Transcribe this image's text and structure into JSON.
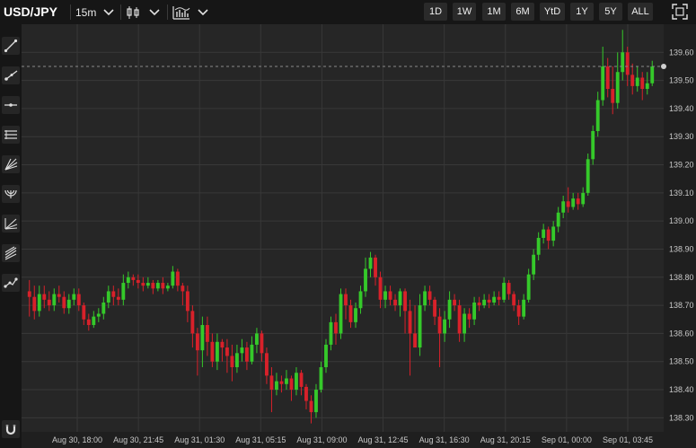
{
  "header": {
    "symbol": "USD/JPY",
    "interval": "15m",
    "chart_type_icon": "candlestick-icon",
    "indicators_icon": "indicators-icon",
    "ranges": [
      "1D",
      "1W",
      "1M",
      "6M",
      "YtD",
      "1Y",
      "5Y",
      "ALL"
    ],
    "fullscreen_icon": "fullscreen-icon"
  },
  "tools": [
    "trend-line-icon",
    "ray-icon",
    "horizontal-line-icon",
    "parallel-channel-icon",
    "fan-icon",
    "arc-icon",
    "fib-retracement-icon",
    "pitchfork-icon",
    "path-icon",
    "magnet-icon"
  ],
  "colors": {
    "up": "#35c92a",
    "down": "#d8212a",
    "background": "#262626",
    "grid": "#383838",
    "crosshair": "#8a8a8a"
  },
  "chart_data": {
    "type": "candlestick",
    "ylim": [
      138.25,
      139.7
    ],
    "yticks": [
      "139.60",
      "139.50",
      "139.40",
      "139.30",
      "139.20",
      "139.10",
      "139.00",
      "138.90",
      "138.80",
      "138.70",
      "138.60",
      "138.50",
      "138.40",
      "138.30"
    ],
    "xticks": [
      "Aug 30, 18:00",
      "Aug 30, 21:45",
      "Aug 31, 01:30",
      "Aug 31, 05:15",
      "Aug 31, 09:00",
      "Aug 31, 12:45",
      "Aug 31, 16:30",
      "Aug 31, 20:15",
      "Sep 01, 00:00",
      "Sep 01, 03:45"
    ],
    "current_price": "139.55",
    "candles": [
      [
        138.75,
        138.73,
        138.79,
        138.66
      ],
      [
        138.73,
        138.68,
        138.77,
        138.65
      ],
      [
        138.68,
        138.74,
        138.77,
        138.66
      ],
      [
        138.74,
        138.72,
        138.77,
        138.69
      ],
      [
        138.72,
        138.7,
        138.75,
        138.68
      ],
      [
        138.7,
        138.74,
        138.76,
        138.68
      ],
      [
        138.74,
        138.73,
        138.77,
        138.71
      ],
      [
        138.73,
        138.69,
        138.75,
        138.67
      ],
      [
        138.69,
        138.72,
        138.74,
        138.67
      ],
      [
        138.72,
        138.74,
        138.76,
        138.7
      ],
      [
        138.74,
        138.7,
        138.76,
        138.68
      ],
      [
        138.7,
        138.65,
        138.71,
        138.63
      ],
      [
        138.65,
        138.63,
        138.67,
        138.61
      ],
      [
        138.63,
        138.66,
        138.68,
        138.62
      ],
      [
        138.66,
        138.67,
        138.69,
        138.64
      ],
      [
        138.67,
        138.71,
        138.73,
        138.65
      ],
      [
        138.71,
        138.75,
        138.77,
        138.69
      ],
      [
        138.75,
        138.73,
        138.77,
        138.7
      ],
      [
        138.73,
        138.72,
        138.76,
        138.7
      ],
      [
        138.72,
        138.78,
        138.81,
        138.7
      ],
      [
        138.78,
        138.8,
        138.82,
        138.76
      ],
      [
        138.8,
        138.79,
        138.81,
        138.77
      ],
      [
        138.79,
        138.78,
        138.81,
        138.76
      ],
      [
        138.78,
        138.77,
        138.8,
        138.75
      ],
      [
        138.77,
        138.78,
        138.8,
        138.76
      ],
      [
        138.78,
        138.76,
        138.79,
        138.74
      ],
      [
        138.76,
        138.78,
        138.79,
        138.75
      ],
      [
        138.78,
        138.76,
        138.8,
        138.74
      ],
      [
        138.76,
        138.77,
        138.78,
        138.75
      ],
      [
        138.77,
        138.82,
        138.84,
        138.76
      ],
      [
        138.82,
        138.77,
        138.83,
        138.75
      ],
      [
        138.77,
        138.75,
        138.78,
        138.7
      ],
      [
        138.75,
        138.68,
        138.77,
        138.64
      ],
      [
        138.68,
        138.6,
        138.7,
        138.55
      ],
      [
        138.6,
        138.54,
        138.62,
        138.45
      ],
      [
        138.54,
        138.63,
        138.66,
        138.48
      ],
      [
        138.63,
        138.57,
        138.66,
        138.52
      ],
      [
        138.57,
        138.5,
        138.6,
        138.48
      ],
      [
        138.5,
        138.57,
        138.6,
        138.47
      ],
      [
        138.57,
        138.55,
        138.58,
        138.5
      ],
      [
        138.55,
        138.52,
        138.58,
        138.46
      ],
      [
        138.52,
        138.48,
        138.56,
        138.43
      ],
      [
        138.48,
        138.53,
        138.56,
        138.46
      ],
      [
        138.53,
        138.55,
        138.58,
        138.5
      ],
      [
        138.55,
        138.5,
        138.57,
        138.47
      ],
      [
        138.5,
        138.56,
        138.59,
        138.49
      ],
      [
        138.56,
        138.6,
        138.62,
        138.53
      ],
      [
        138.6,
        138.53,
        138.61,
        138.5
      ],
      [
        138.53,
        138.45,
        138.55,
        138.42
      ],
      [
        138.45,
        138.4,
        138.48,
        138.32
      ],
      [
        138.4,
        138.43,
        138.46,
        138.38
      ],
      [
        138.43,
        138.42,
        138.45,
        138.39
      ],
      [
        138.42,
        138.44,
        138.47,
        138.4
      ],
      [
        138.44,
        138.4,
        138.45,
        138.36
      ],
      [
        138.4,
        138.46,
        138.48,
        138.38
      ],
      [
        138.46,
        138.41,
        138.47,
        138.38
      ],
      [
        138.41,
        138.36,
        138.42,
        138.33
      ],
      [
        138.36,
        138.32,
        138.38,
        138.28
      ],
      [
        138.32,
        138.4,
        138.42,
        138.3
      ],
      [
        138.4,
        138.48,
        138.5,
        138.39
      ],
      [
        138.48,
        138.56,
        138.58,
        138.46
      ],
      [
        138.56,
        138.64,
        138.66,
        138.54
      ],
      [
        138.64,
        138.6,
        138.67,
        138.56
      ],
      [
        138.6,
        138.74,
        138.76,
        138.58
      ],
      [
        138.74,
        138.7,
        138.76,
        138.65
      ],
      [
        138.7,
        138.64,
        138.72,
        138.62
      ],
      [
        138.64,
        138.69,
        138.71,
        138.62
      ],
      [
        138.69,
        138.75,
        138.77,
        138.67
      ],
      [
        138.75,
        138.83,
        138.87,
        138.73
      ],
      [
        138.83,
        138.87,
        138.89,
        138.8
      ],
      [
        138.87,
        138.8,
        138.88,
        138.77
      ],
      [
        138.8,
        138.72,
        138.82,
        138.69
      ],
      [
        138.72,
        138.75,
        138.77,
        138.69
      ],
      [
        138.75,
        138.72,
        138.77,
        138.7
      ],
      [
        138.72,
        138.7,
        138.74,
        138.68
      ],
      [
        138.7,
        138.75,
        138.76,
        138.66
      ],
      [
        138.75,
        138.68,
        138.76,
        138.6
      ],
      [
        138.68,
        138.6,
        138.72,
        138.45
      ],
      [
        138.6,
        138.55,
        138.7,
        138.55
      ],
      [
        138.55,
        138.7,
        138.74,
        138.52
      ],
      [
        138.7,
        138.75,
        138.77,
        138.68
      ],
      [
        138.75,
        138.72,
        138.77,
        138.7
      ],
      [
        138.72,
        138.66,
        138.73,
        138.63
      ],
      [
        138.66,
        138.6,
        138.69,
        138.48
      ],
      [
        138.6,
        138.65,
        138.68,
        138.57
      ],
      [
        138.65,
        138.72,
        138.75,
        138.62
      ],
      [
        138.72,
        138.7,
        138.74,
        138.68
      ],
      [
        138.7,
        138.6,
        138.72,
        138.57
      ],
      [
        138.6,
        138.67,
        138.69,
        138.57
      ],
      [
        138.67,
        138.65,
        138.69,
        138.62
      ],
      [
        138.65,
        138.71,
        138.73,
        138.63
      ],
      [
        138.71,
        138.7,
        138.73,
        138.68
      ],
      [
        138.7,
        138.72,
        138.74,
        138.69
      ],
      [
        138.72,
        138.71,
        138.74,
        138.69
      ],
      [
        138.71,
        138.73,
        138.75,
        138.7
      ],
      [
        138.73,
        138.72,
        138.75,
        138.7
      ],
      [
        138.72,
        138.78,
        138.8,
        138.71
      ],
      [
        138.78,
        138.74,
        138.79,
        138.72
      ],
      [
        138.74,
        138.7,
        138.75,
        138.68
      ],
      [
        138.7,
        138.66,
        138.72,
        138.63
      ],
      [
        138.66,
        138.72,
        138.74,
        138.65
      ],
      [
        138.72,
        138.81,
        138.83,
        138.71
      ],
      [
        138.81,
        138.88,
        138.9,
        138.79
      ],
      [
        138.88,
        138.94,
        138.96,
        138.86
      ],
      [
        138.94,
        138.97,
        138.99,
        138.92
      ],
      [
        138.97,
        138.93,
        138.98,
        138.9
      ],
      [
        138.93,
        138.98,
        139.0,
        138.91
      ],
      [
        138.98,
        139.03,
        139.05,
        138.96
      ],
      [
        139.03,
        139.07,
        139.09,
        139.01
      ],
      [
        139.07,
        139.05,
        139.12,
        139.03
      ],
      [
        139.05,
        139.08,
        139.1,
        139.04
      ],
      [
        139.08,
        139.06,
        139.1,
        139.04
      ],
      [
        139.06,
        139.1,
        139.12,
        139.05
      ],
      [
        139.1,
        139.22,
        139.24,
        139.09
      ],
      [
        139.22,
        139.32,
        139.34,
        139.2
      ],
      [
        139.32,
        139.43,
        139.46,
        139.3
      ],
      [
        139.43,
        139.55,
        139.62,
        139.41
      ],
      [
        139.55,
        139.47,
        139.58,
        139.44
      ],
      [
        139.47,
        139.42,
        139.55,
        139.38
      ],
      [
        139.42,
        139.53,
        139.6,
        139.4
      ],
      [
        139.53,
        139.6,
        139.68,
        139.5
      ],
      [
        139.6,
        139.52,
        139.62,
        139.48
      ],
      [
        139.52,
        139.48,
        139.56,
        139.45
      ],
      [
        139.48,
        139.51,
        139.55,
        139.46
      ],
      [
        139.51,
        139.47,
        139.53,
        139.43
      ],
      [
        139.47,
        139.49,
        139.53,
        139.45
      ],
      [
        139.49,
        139.55,
        139.57,
        139.48
      ]
    ]
  }
}
